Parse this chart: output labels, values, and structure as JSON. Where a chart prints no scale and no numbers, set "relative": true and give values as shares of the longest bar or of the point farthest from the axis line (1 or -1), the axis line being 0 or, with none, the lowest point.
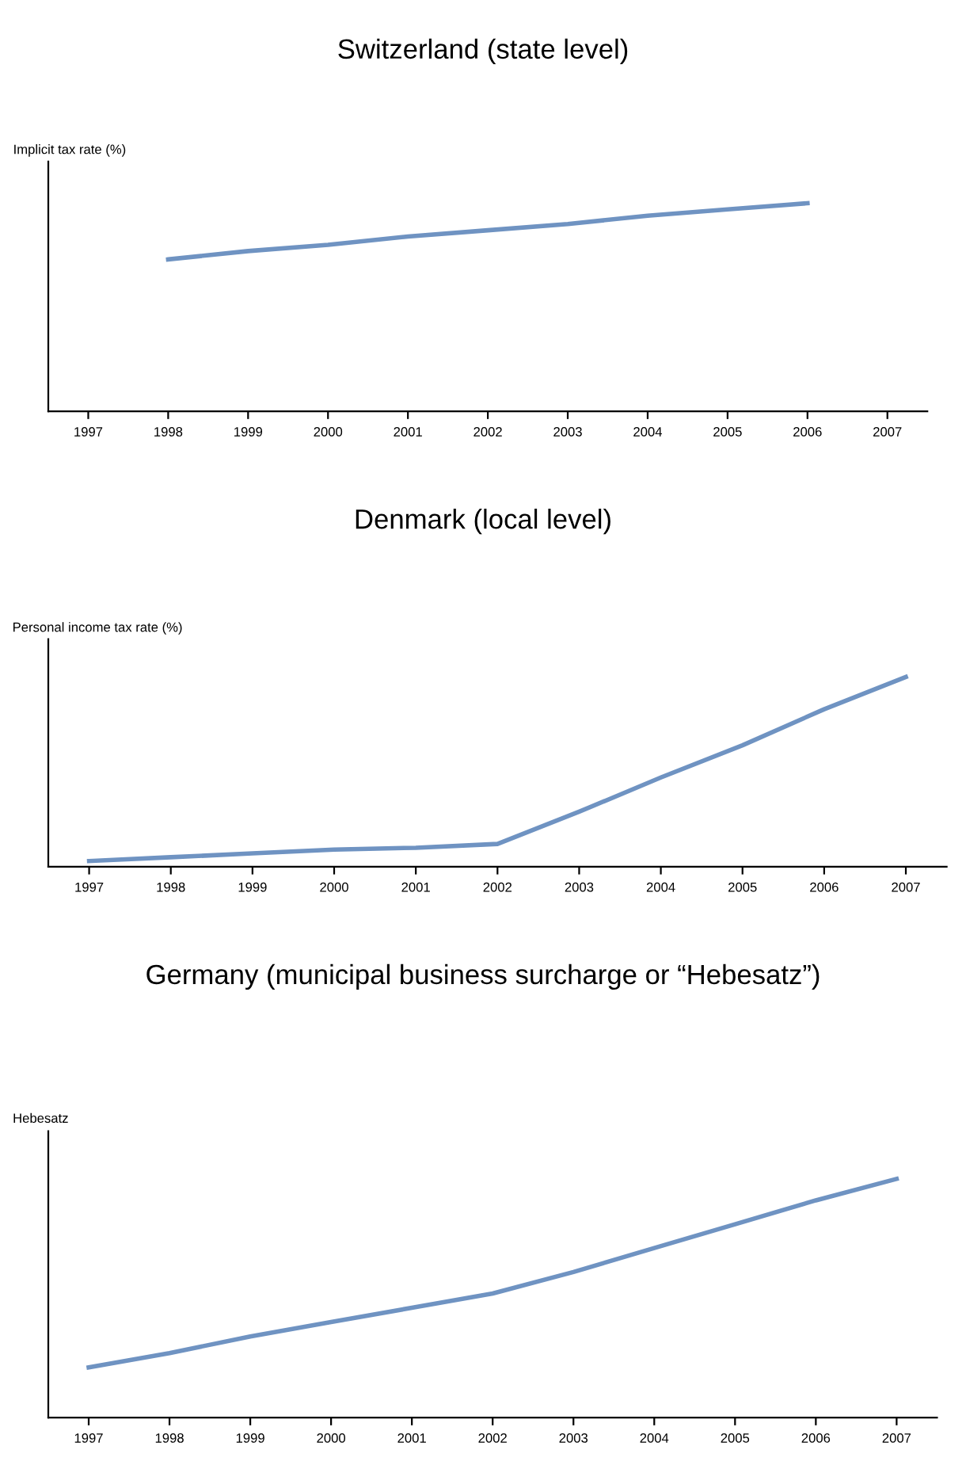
{
  "chart_data": [
    {
      "type": "line",
      "title": "Switzerland (state level)",
      "ylabel": "Implicit tax rate (%)",
      "relative": true,
      "categories": [
        "1997",
        "1998",
        "1999",
        "2000",
        "2001",
        "2002",
        "2003",
        "2004",
        "2005",
        "2006",
        "2007"
      ],
      "series": [
        {
          "color": "#6f93c2",
          "values": [
            null,
            0.73,
            0.77,
            0.8,
            0.84,
            0.87,
            0.9,
            0.94,
            0.97,
            1,
            null
          ]
        }
      ]
    },
    {
      "type": "line",
      "title": "Denmark (local level)",
      "ylabel": "Personal income tax rate (%)",
      "relative": true,
      "categories": [
        "1997",
        "1998",
        "1999",
        "2000",
        "2001",
        "2002",
        "2003",
        "2004",
        "2005",
        "2006",
        "2007"
      ],
      "series": [
        {
          "color": "#6f93c2",
          "values": [
            0.03,
            0.05,
            0.07,
            0.09,
            0.1,
            0.12,
            0.29,
            0.47,
            0.64,
            0.83,
            1
          ]
        }
      ]
    },
    {
      "type": "line",
      "title": "Germany (municipal business surcharge or “Hebesatz”)",
      "ylabel": "Hebesatz",
      "relative": true,
      "categories": [
        "1997",
        "1998",
        "1999",
        "2000",
        "2001",
        "2002",
        "2003",
        "2004",
        "2005",
        "2006",
        "2007"
      ],
      "series": [
        {
          "color": "#6f93c2",
          "values": [
            0.21,
            0.27,
            0.34,
            0.4,
            0.46,
            0.52,
            0.61,
            0.71,
            0.81,
            0.91,
            1
          ]
        }
      ]
    }
  ]
}
